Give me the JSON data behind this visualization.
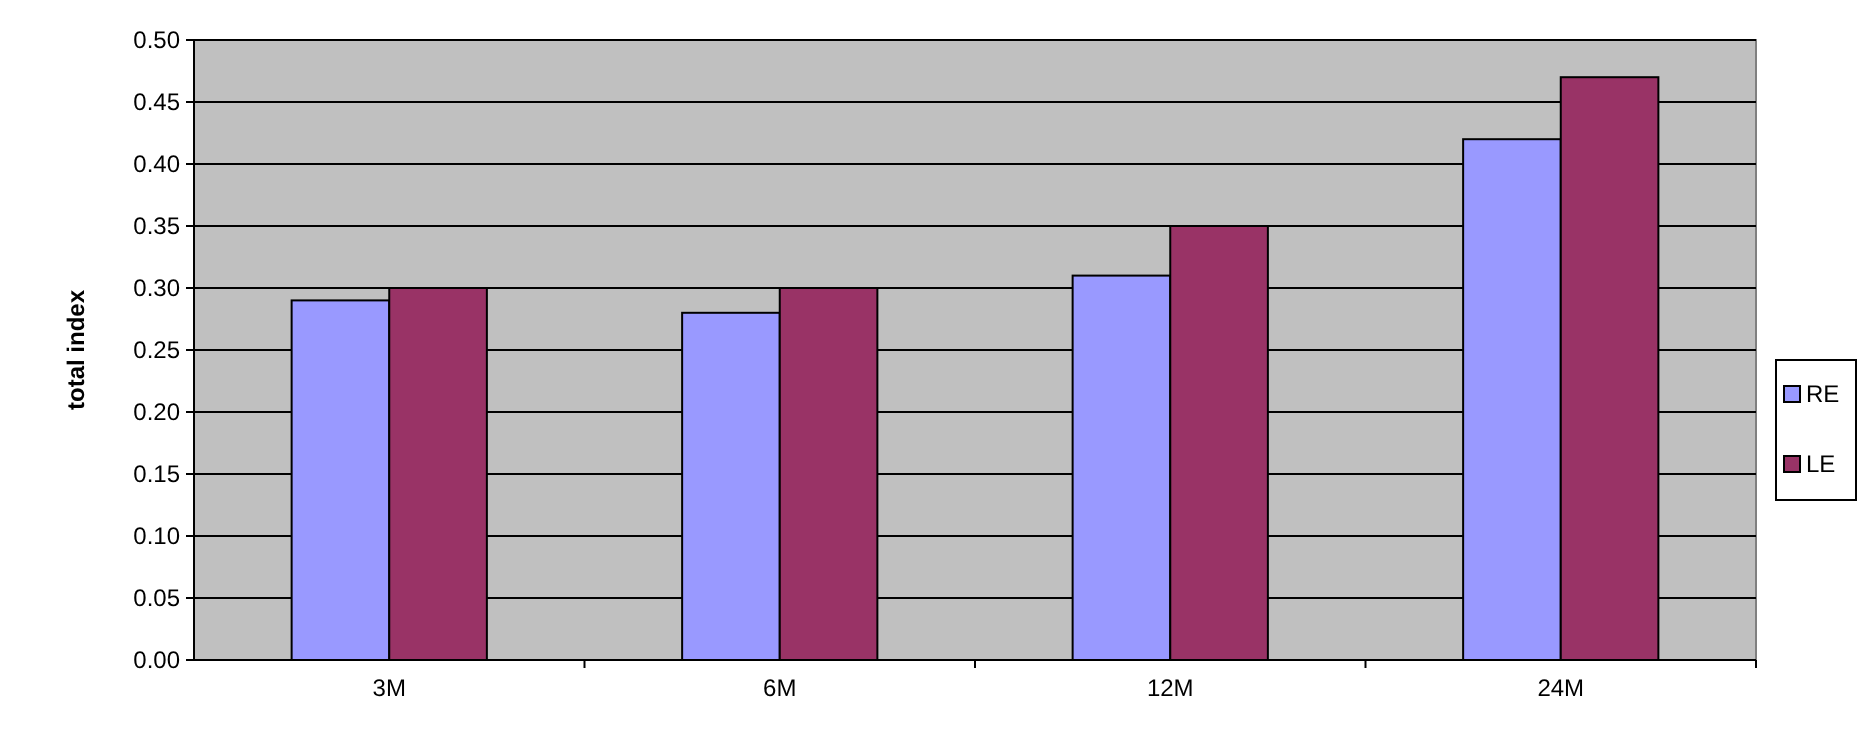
{
  "chart_data": {
    "type": "bar",
    "ylabel": "total index",
    "categories": [
      "3M",
      "6M",
      "12M",
      "24M"
    ],
    "series": [
      {
        "name": "RE",
        "color": "#9999ff",
        "values": [
          0.29,
          0.28,
          0.31,
          0.42
        ]
      },
      {
        "name": "LE",
        "color": "#993366",
        "values": [
          0.3,
          0.3,
          0.35,
          0.47
        ]
      }
    ],
    "ylim": [
      0,
      0.5
    ],
    "yticks": [
      {
        "value": 0,
        "label": "0.00"
      },
      {
        "value": 0.05,
        "label": "0.05"
      },
      {
        "value": 0.1,
        "label": "0.10"
      },
      {
        "value": 0.15,
        "label": "0.15"
      },
      {
        "value": 0.2,
        "label": "0.20"
      },
      {
        "value": 0.25,
        "label": "0.25"
      },
      {
        "value": 0.3,
        "label": "0.30"
      },
      {
        "value": 0.35,
        "label": "0.35"
      },
      {
        "value": 0.4,
        "label": "0.40"
      },
      {
        "value": 0.45,
        "label": "0.45"
      },
      {
        "value": 0.5,
        "label": "0.50"
      }
    ],
    "grid": "y",
    "legend": "right"
  }
}
